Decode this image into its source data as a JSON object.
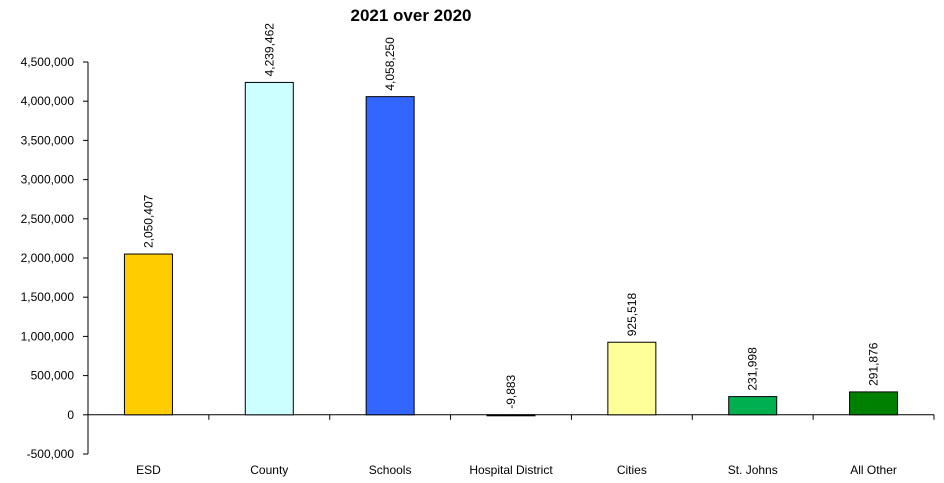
{
  "chart_data": {
    "type": "bar",
    "title": "2021 over 2020",
    "xlabel": "",
    "ylabel": "",
    "categories": [
      "ESD",
      "County",
      "Schools",
      "Hospital District",
      "Cities",
      "St. Johns",
      "All Other"
    ],
    "values": [
      2050407,
      4239462,
      4058250,
      -9883,
      925518,
      231998,
      291876
    ],
    "value_labels": [
      "2,050,407",
      "4,239,462",
      "4,058,250",
      "-9,883",
      "925,518",
      "231,998",
      "291,876"
    ],
    "ylim": [
      -500000,
      4500000
    ],
    "yticks": [
      -500000,
      0,
      500000,
      1000000,
      1500000,
      2000000,
      2500000,
      3000000,
      3500000,
      4000000,
      4500000
    ],
    "ytick_labels": [
      "-500,000",
      "0",
      "500,000",
      "1,000,000",
      "1,500,000",
      "2,000,000",
      "2,500,000",
      "3,000,000",
      "3,500,000",
      "4,000,000",
      "4,500,000"
    ],
    "bar_colors": [
      "#FFCC00",
      "#CCFFFF",
      "#3366FF",
      "#C0C0C0",
      "#FFFF99",
      "#00B050",
      "#008000"
    ],
    "grid": false,
    "legend": "none"
  }
}
